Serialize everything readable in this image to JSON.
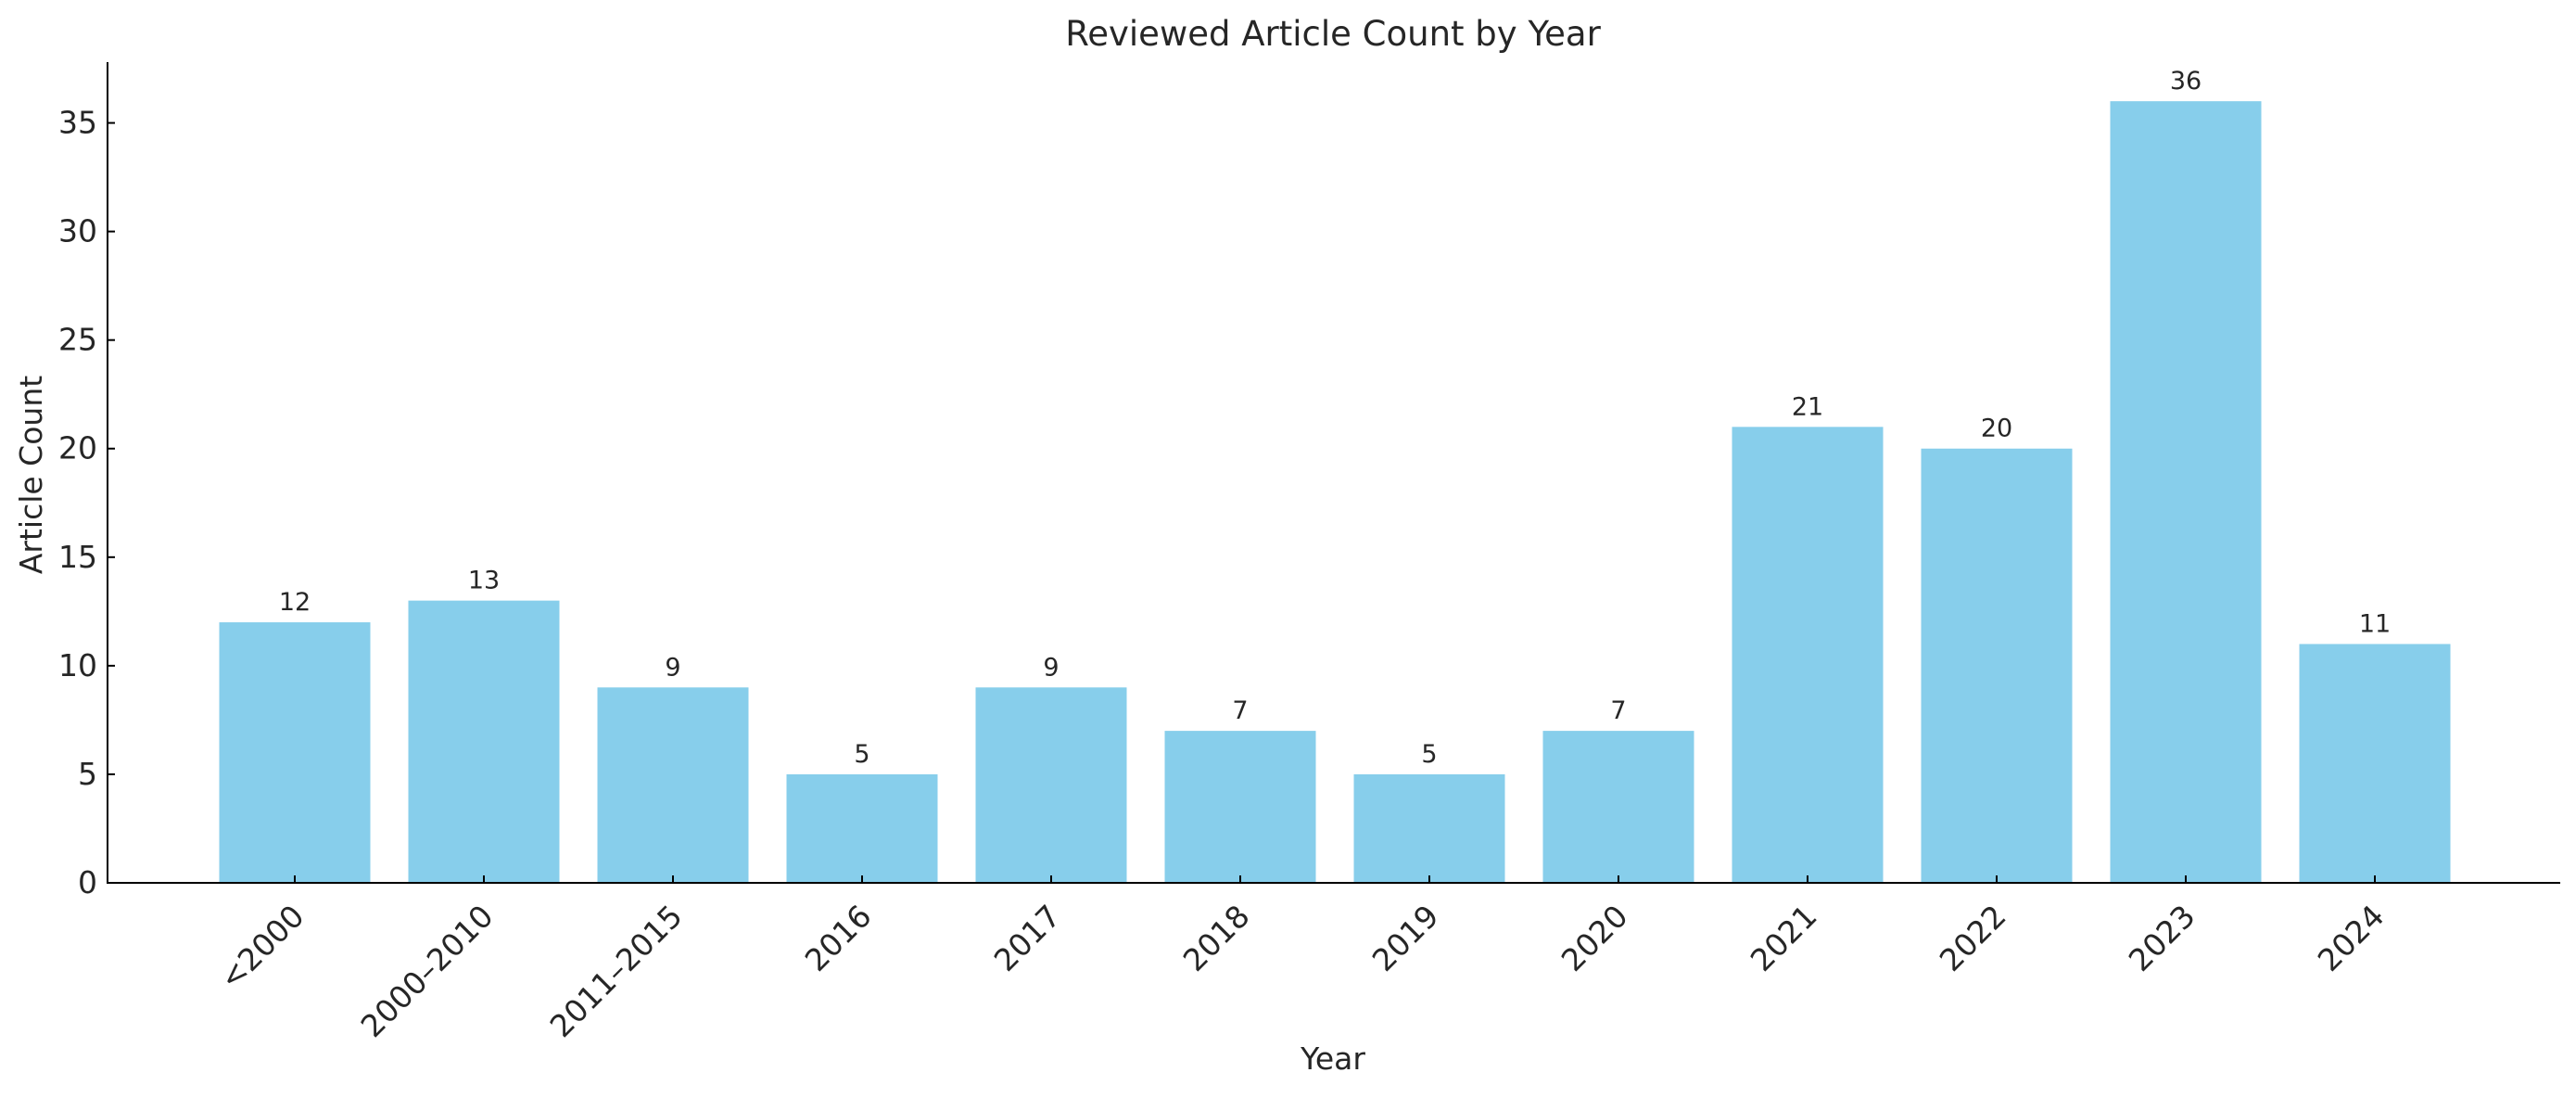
{
  "chart_data": {
    "type": "bar",
    "title": "Reviewed Article Count by Year",
    "xlabel": "Year",
    "ylabel": "Article Count",
    "categories": [
      "<2000",
      "2000–2010",
      "2011–2015",
      "2016",
      "2017",
      "2018",
      "2019",
      "2020",
      "2021",
      "2022",
      "2023",
      "2024"
    ],
    "values": [
      12,
      13,
      9,
      5,
      9,
      7,
      5,
      7,
      21,
      20,
      36,
      11
    ],
    "data_labels": [
      "12",
      "13",
      "9",
      "5",
      "9",
      "7",
      "5",
      "7",
      "21",
      "20",
      "36",
      "11"
    ],
    "ylim": [
      0,
      37.8
    ],
    "yticks": [
      0,
      5,
      10,
      15,
      20,
      25,
      30,
      35
    ],
    "ytick_labels": [
      "0",
      "5",
      "10",
      "15",
      "20",
      "25",
      "30",
      "35"
    ],
    "grid": false,
    "legend": "none",
    "x_tick_rotation": 45,
    "colors": {
      "bar": "#87ceeb",
      "axis": "#000000",
      "text": "#262626"
    }
  }
}
